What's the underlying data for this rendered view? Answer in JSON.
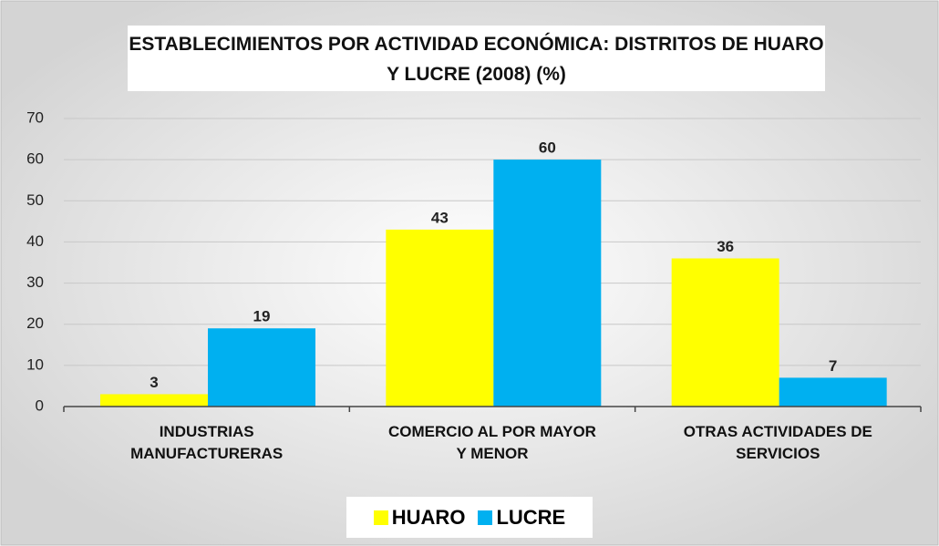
{
  "chart_data": {
    "type": "bar",
    "title": "ESTABLECIMIENTOS POR ACTIVIDAD ECONÓMICA: DISTRITOS DE HUARO Y LUCRE (2008) (%)",
    "categories": [
      "INDUSTRIAS MANUFACTURERAS",
      "COMERCIO AL POR MAYOR Y MENOR",
      "OTRAS ACTIVIDADES DE SERVICIOS"
    ],
    "series": [
      {
        "name": "HUARO",
        "color": "#ffff00",
        "values": [
          3,
          43,
          36
        ]
      },
      {
        "name": "LUCRE",
        "color": "#00b0f0",
        "values": [
          19,
          60,
          7
        ]
      }
    ],
    "ylim": [
      0,
      70
    ],
    "yticks": [
      0,
      10,
      20,
      30,
      40,
      50,
      60,
      70
    ],
    "grid": true,
    "legend": "bottom"
  }
}
